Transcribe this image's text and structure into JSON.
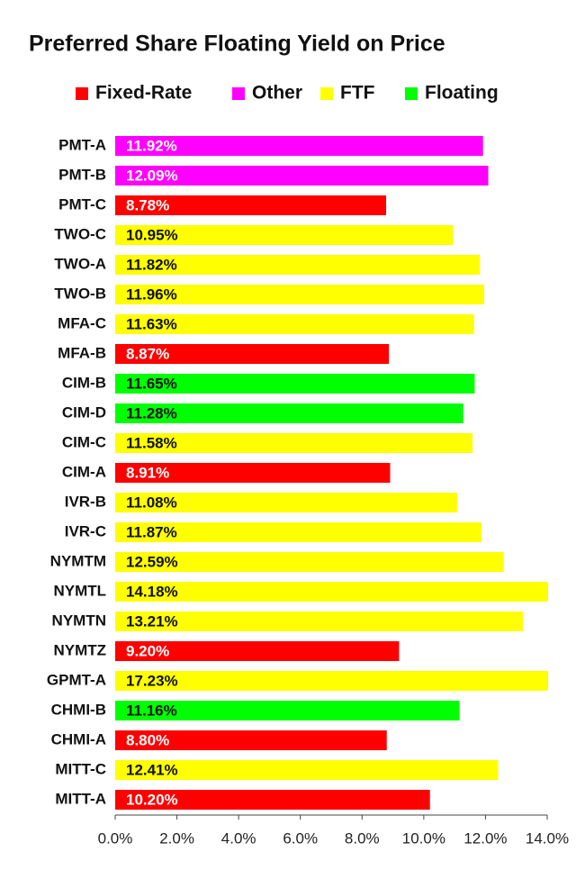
{
  "chart_data": {
    "type": "bar",
    "orientation": "horizontal",
    "title": "Preferred Share Floating Yield on Price",
    "categories": [
      "PMT-A",
      "PMT-B",
      "PMT-C",
      "TWO-C",
      "TWO-A",
      "TWO-B",
      "MFA-C",
      "MFA-B",
      "CIM-B",
      "CIM-D",
      "CIM-C",
      "CIM-A",
      "IVR-B",
      "IVR-C",
      "NYMTM",
      "NYMTL",
      "NYMTN",
      "NYMTZ",
      "GPMT-A",
      "CHMI-B",
      "CHMI-A",
      "MITT-C",
      "MITT-A"
    ],
    "series": [
      {
        "name": "Fixed-Rate",
        "color": "#ff0000",
        "values": [
          null,
          null,
          8.78,
          null,
          null,
          null,
          null,
          8.87,
          null,
          null,
          null,
          8.91,
          null,
          null,
          null,
          null,
          null,
          9.2,
          null,
          null,
          8.8,
          null,
          10.2
        ],
        "value_labels": [
          null,
          null,
          "8.78%",
          null,
          null,
          null,
          null,
          "8.87%",
          null,
          null,
          null,
          "8.91%",
          null,
          null,
          null,
          null,
          null,
          "9.20%",
          null,
          null,
          "8.80%",
          null,
          "10.20%"
        ]
      },
      {
        "name": "Other",
        "color": "#ff00ff",
        "values": [
          11.92,
          12.09,
          null,
          null,
          null,
          null,
          null,
          null,
          null,
          null,
          null,
          null,
          null,
          null,
          null,
          null,
          null,
          null,
          null,
          null,
          null,
          null,
          null
        ],
        "value_labels": [
          "11.92%",
          "12.09%",
          null,
          null,
          null,
          null,
          null,
          null,
          null,
          null,
          null,
          null,
          null,
          null,
          null,
          null,
          null,
          null,
          null,
          null,
          null,
          null,
          null
        ]
      },
      {
        "name": "FTF",
        "color": "#ffff00",
        "values": [
          null,
          null,
          null,
          10.95,
          11.82,
          11.96,
          11.63,
          null,
          null,
          null,
          11.58,
          null,
          11.08,
          11.87,
          12.59,
          14.18,
          13.21,
          null,
          17.23,
          null,
          null,
          12.41,
          null
        ],
        "value_labels": [
          null,
          null,
          null,
          "10.95%",
          "11.82%",
          "11.96%",
          "11.63%",
          null,
          null,
          null,
          "11.58%",
          null,
          "11.08%",
          "11.87%",
          "12.59%",
          "14.18%",
          "13.21%",
          null,
          "17.23%",
          null,
          null,
          "12.41%",
          null
        ]
      },
      {
        "name": "Floating",
        "color": "#00ff00",
        "values": [
          null,
          null,
          null,
          null,
          null,
          null,
          null,
          null,
          11.65,
          11.28,
          null,
          null,
          null,
          null,
          null,
          null,
          null,
          null,
          null,
          11.16,
          null,
          null,
          null
        ],
        "value_labels": [
          null,
          null,
          null,
          null,
          null,
          null,
          null,
          null,
          "11.65%",
          "11.28%",
          null,
          null,
          null,
          null,
          null,
          null,
          null,
          null,
          null,
          "11.16%",
          null,
          null,
          null
        ]
      }
    ],
    "xlim": [
      0,
      14
    ],
    "xticks": [
      {
        "value": 0,
        "label": "0.0%"
      },
      {
        "value": 2,
        "label": "2.0%"
      },
      {
        "value": 4,
        "label": "4.0%"
      },
      {
        "value": 6,
        "label": "6.0%"
      },
      {
        "value": 8,
        "label": "8.0%"
      },
      {
        "value": 10,
        "label": "10.0%"
      },
      {
        "value": 12,
        "label": "12.0%"
      },
      {
        "value": 14,
        "label": "14.0%"
      }
    ],
    "legend": "top"
  }
}
